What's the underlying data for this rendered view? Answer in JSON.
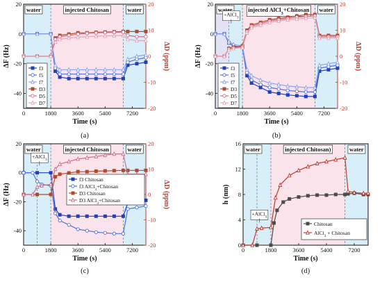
{
  "colors": {
    "f3": "#1f3fbf",
    "f5": "#4d6fe0",
    "f7": "#8ea2f0",
    "D3": "#b5492a",
    "D5": "#d46a8a",
    "D7": "#e3a6b8",
    "chitosan_h": "#4a4a4a",
    "alcl3_h": "#c0392b",
    "water_bg": "#d8eef8",
    "chitosan_bg": "#fbe3ec",
    "alcl3_bg": "#e3e3f5",
    "right_axis": "#c0392b"
  },
  "chart_data": [
    {
      "id": "a",
      "type": "line",
      "caption": "(a)",
      "xlabel": "Time (s)",
      "ylabel_left": "ΔF (Hz)",
      "ylabel_right": "ΔD (ppm)",
      "xlim": [
        0,
        8100
      ],
      "ylim_left": [
        -50,
        20
      ],
      "ylim_right": [
        -20,
        20
      ],
      "xticks": [
        0,
        1800,
        3600,
        5400,
        7200
      ],
      "yticks_left": [
        -40,
        -20,
        0,
        20
      ],
      "yticks_right": [
        -20,
        -10,
        0,
        10,
        20
      ],
      "regions": [
        {
          "label": "water",
          "x0": 0,
          "x1": 1800,
          "kind": "water"
        },
        {
          "label": "injected Chitosan",
          "x0": 1800,
          "x1": 6600,
          "kind": "chitosan"
        },
        {
          "label": "water",
          "x0": 6600,
          "x1": 8100,
          "kind": "water"
        }
      ],
      "legend": [
        "f3",
        "f5",
        "f7",
        "D3",
        "D5",
        "D7"
      ],
      "series": [
        {
          "name": "f3",
          "axis": "left",
          "key": "f3",
          "marker": "square",
          "x": [
            0,
            900,
            1800,
            2100,
            2400,
            3000,
            3600,
            4200,
            4800,
            5400,
            6000,
            6600,
            6900,
            7500,
            8100
          ],
          "y": [
            0,
            0,
            0,
            -25,
            -29,
            -30,
            -30,
            -30,
            -30,
            -30,
            -30,
            -30,
            -21,
            -20,
            -19
          ]
        },
        {
          "name": "f5",
          "axis": "left",
          "key": "f5",
          "marker": "circle",
          "x": [
            0,
            900,
            1800,
            2100,
            2400,
            3000,
            3600,
            4200,
            4800,
            5400,
            6000,
            6600,
            6900,
            7500,
            8100
          ],
          "y": [
            0,
            0,
            0,
            -23,
            -27,
            -27,
            -27,
            -27,
            -27,
            -27,
            -27,
            -27,
            -19,
            -17,
            -16
          ]
        },
        {
          "name": "f7",
          "axis": "left",
          "key": "f7",
          "marker": "triangle",
          "x": [
            0,
            900,
            1800,
            2100,
            2400,
            3000,
            3600,
            4200,
            4800,
            5400,
            6000,
            6600,
            6900,
            7500,
            8100
          ],
          "y": [
            0,
            0,
            0,
            -21,
            -24,
            -24,
            -24,
            -24,
            -24,
            -24,
            -24,
            -24,
            -17,
            -15,
            -14
          ]
        },
        {
          "name": "D3",
          "axis": "right",
          "key": "D3",
          "marker": "square",
          "x": [
            0,
            900,
            1800,
            2100,
            2400,
            3000,
            3600,
            4200,
            4800,
            5400,
            6000,
            6600,
            6900,
            7500,
            8100
          ],
          "y": [
            0,
            0,
            0,
            7,
            8,
            8.5,
            9,
            9,
            9.2,
            9.3,
            9.4,
            9.5,
            9.5,
            9.5,
            9.5
          ]
        },
        {
          "name": "D5",
          "axis": "right",
          "key": "D5",
          "marker": "circle",
          "x": [
            0,
            900,
            1800,
            2100,
            2400,
            3000,
            3600,
            4200,
            4800,
            5400,
            6000,
            6600,
            6900,
            7500,
            8100
          ],
          "y": [
            0,
            0,
            0,
            6.5,
            7.5,
            8,
            8.5,
            8.8,
            9,
            9.1,
            9.2,
            9.3,
            8,
            7.5,
            7.5
          ]
        },
        {
          "name": "D7",
          "axis": "right",
          "key": "D7",
          "marker": "triangle",
          "x": [
            0,
            900,
            1800,
            2100,
            2400,
            3000,
            3600,
            4200,
            4800,
            5400,
            6000,
            6600,
            6900,
            7500,
            8100
          ],
          "y": [
            0,
            0,
            0,
            5.5,
            6.5,
            7,
            7.3,
            7.5,
            7.7,
            7.8,
            7.9,
            8,
            6.5,
            6,
            6
          ]
        }
      ]
    },
    {
      "id": "b",
      "type": "line",
      "caption": "(b)",
      "xlabel": "Time (s)",
      "ylabel_left": "ΔF (Hz)",
      "ylabel_right": "ΔD (ppm)",
      "xlim": [
        0,
        8100
      ],
      "ylim_left": [
        -50,
        20
      ],
      "ylim_right": [
        -20,
        20
      ],
      "xticks": [
        0,
        1800,
        3600,
        5400,
        7200
      ],
      "yticks_left": [
        -40,
        -20,
        0,
        20
      ],
      "yticks_right": [
        -20,
        -10,
        0,
        10,
        20
      ],
      "regions": [
        {
          "label": "water",
          "x0": 0,
          "x1": 900,
          "kind": "alcl3"
        },
        {
          "label": "",
          "x0": 900,
          "x1": 1800,
          "kind": "water"
        },
        {
          "label": "injected AlCl3+Chitosan",
          "x0": 1800,
          "x1": 6600,
          "kind": "chitosan"
        },
        {
          "label": "water",
          "x0": 6600,
          "x1": 8100,
          "kind": "water"
        }
      ],
      "annotation": "+AlCl3",
      "legend": [
        "f3",
        "f5",
        "f7",
        "D3",
        "D5",
        "D7"
      ],
      "series": [
        {
          "name": "f3",
          "axis": "left",
          "key": "f3",
          "marker": "square",
          "x": [
            0,
            600,
            900,
            1200,
            1800,
            2100,
            2400,
            3000,
            3600,
            4200,
            4800,
            5400,
            6000,
            6600,
            6900,
            7500,
            8100
          ],
          "y": [
            0,
            0,
            -6,
            -8,
            -9,
            -28,
            -33,
            -36,
            -39,
            -40,
            -41,
            -41.5,
            -42,
            -42,
            -25,
            -24,
            -23
          ]
        },
        {
          "name": "f5",
          "axis": "left",
          "key": "f5",
          "marker": "circle",
          "x": [
            0,
            600,
            900,
            1200,
            1800,
            2100,
            2400,
            3000,
            3600,
            4200,
            4800,
            5400,
            6000,
            6600,
            6900,
            7500,
            8100
          ],
          "y": [
            0,
            0,
            -6,
            -8,
            -9,
            -26,
            -31,
            -34,
            -36,
            -37,
            -38,
            -38.5,
            -39,
            -39,
            -23,
            -22,
            -21
          ]
        },
        {
          "name": "f7",
          "axis": "left",
          "key": "f7",
          "marker": "triangle",
          "x": [
            0,
            600,
            900,
            1200,
            1800,
            2100,
            2400,
            3000,
            3600,
            4200,
            4800,
            5400,
            6000,
            6600,
            6900,
            7500,
            8100
          ],
          "y": [
            0,
            0,
            -5,
            -7,
            -8,
            -24,
            -28,
            -31,
            -33,
            -34,
            -35,
            -35.5,
            -36,
            -36,
            -21,
            -20,
            -19
          ]
        },
        {
          "name": "D3",
          "axis": "right",
          "key": "D3",
          "marker": "square",
          "x": [
            0,
            600,
            900,
            1200,
            1800,
            2100,
            2400,
            3000,
            3600,
            4200,
            4800,
            5400,
            6000,
            6600,
            6900,
            7500,
            8100
          ],
          "y": [
            0,
            0,
            3,
            3.5,
            4,
            10,
            12,
            13,
            14,
            14.5,
            15,
            15.5,
            16,
            16,
            8,
            8,
            8
          ]
        },
        {
          "name": "D5",
          "axis": "right",
          "key": "D5",
          "marker": "circle",
          "x": [
            0,
            600,
            900,
            1200,
            1800,
            2100,
            2400,
            3000,
            3600,
            4200,
            4800,
            5400,
            6000,
            6600,
            6900,
            7500,
            8100
          ],
          "y": [
            0,
            0,
            2.8,
            3.2,
            3.6,
            9.5,
            11.5,
            12.5,
            13.5,
            14,
            14.5,
            15,
            15.3,
            15.5,
            7.5,
            7.5,
            7.5
          ]
        },
        {
          "name": "D7",
          "axis": "right",
          "key": "D7",
          "marker": "triangle",
          "x": [
            0,
            600,
            900,
            1200,
            1800,
            2100,
            2400,
            3000,
            3600,
            4200,
            4800,
            5400,
            6000,
            6600,
            6900,
            7500,
            8100
          ],
          "y": [
            0,
            0,
            2.5,
            3,
            3.3,
            9,
            11,
            12,
            13,
            13.5,
            14,
            14.3,
            14.6,
            14.8,
            7,
            7,
            7
          ]
        }
      ]
    },
    {
      "id": "c",
      "type": "line",
      "caption": "(c)",
      "xlabel": "Time (s)",
      "ylabel_left": "ΔF (Hz)",
      "ylabel_right": "ΔD (ppm)",
      "xlim": [
        0,
        8100
      ],
      "ylim_left": [
        -50,
        20
      ],
      "ylim_right": [
        -20,
        20
      ],
      "xticks": [
        0,
        1800,
        3600,
        5400,
        7200
      ],
      "yticks_left": [
        -40,
        -20,
        0,
        20
      ],
      "yticks_right": [
        -20,
        -10,
        0,
        10,
        20
      ],
      "regions": [
        {
          "label": "water",
          "x0": 0,
          "x1": 900,
          "kind": "water"
        },
        {
          "label": "",
          "x0": 900,
          "x1": 1800,
          "kind": "water"
        },
        {
          "label": "injected Chitosan",
          "x0": 1800,
          "x1": 6600,
          "kind": "chitosan"
        },
        {
          "label": "water",
          "x0": 6600,
          "x1": 8100,
          "kind": "water"
        }
      ],
      "annotation": "+AlCl3",
      "legend": [
        "f3  Chitosan",
        "f3  AlCl3+Chitosan",
        "D3  Chitosan",
        "D3  AlCl3+Chitosan"
      ],
      "series": [
        {
          "name": "f3  Chitosan",
          "axis": "left",
          "key": "f3",
          "marker": "square",
          "x": [
            0,
            900,
            1800,
            2100,
            2400,
            3000,
            3600,
            4200,
            4800,
            5400,
            6000,
            6600,
            6900,
            7500,
            8100
          ],
          "y": [
            0,
            0,
            0,
            -25,
            -29,
            -30,
            -30,
            -30,
            -30,
            -30,
            -30,
            -30,
            -21,
            -20,
            -19
          ]
        },
        {
          "name": "f3  AlCl3+Chitosan",
          "axis": "left",
          "key": "f5",
          "marker": "circle",
          "x": [
            0,
            600,
            900,
            1200,
            1800,
            2100,
            2400,
            3000,
            3600,
            4200,
            4800,
            5400,
            6000,
            6600,
            6900,
            7500,
            8100
          ],
          "y": [
            0,
            0,
            -6,
            -8,
            -9,
            -28,
            -33,
            -36,
            -39,
            -40,
            -41,
            -41.5,
            -42,
            -42,
            -25,
            -24,
            -23
          ]
        },
        {
          "name": "D3  Chitosan",
          "axis": "right",
          "key": "D3",
          "marker": "square",
          "x": [
            0,
            900,
            1800,
            2100,
            2400,
            3000,
            3600,
            4200,
            4800,
            5400,
            6000,
            6600,
            6900,
            7500,
            8100
          ],
          "y": [
            0,
            0,
            0,
            7,
            8,
            8.5,
            9,
            9,
            9.2,
            9.3,
            9.4,
            9.5,
            9.5,
            9.5,
            9.5
          ]
        },
        {
          "name": "D3  AlCl3+Chitosan",
          "axis": "right",
          "key": "D5",
          "marker": "triangle",
          "x": [
            0,
            600,
            900,
            1200,
            1800,
            2100,
            2400,
            3000,
            3600,
            4200,
            4800,
            5400,
            6000,
            6600,
            6900,
            7500,
            8100
          ],
          "y": [
            0,
            0,
            3,
            3.5,
            4,
            10,
            12,
            13,
            14,
            14.5,
            15,
            15.5,
            16,
            16,
            8,
            8,
            8
          ]
        }
      ]
    },
    {
      "id": "d",
      "type": "line",
      "caption": "(d)",
      "xlabel": "Time (s)",
      "ylabel_left": "h (nm)",
      "xlim": [
        0,
        8100
      ],
      "ylim_left": [
        0,
        16
      ],
      "xticks": [
        0,
        1800,
        3600,
        5400,
        7200
      ],
      "yticks_left": [
        0,
        4,
        8,
        12,
        16
      ],
      "regions": [
        {
          "label": "water",
          "x0": 0,
          "x1": 900,
          "kind": "water"
        },
        {
          "label": "",
          "x0": 900,
          "x1": 1800,
          "kind": "water"
        },
        {
          "label": "injected Chitosan)",
          "x0": 1800,
          "x1": 6600,
          "kind": "chitosan"
        },
        {
          "label": "water",
          "x0": 6600,
          "x1": 8100,
          "kind": "water"
        }
      ],
      "annotation": "+AlCl3",
      "legend": [
        "Chitosan",
        "AlCl3 + Chitosan"
      ],
      "series": [
        {
          "name": "Chitosan",
          "axis": "left",
          "key": "chitosan_h",
          "marker": "square",
          "x": [
            0,
            900,
            1800,
            2000,
            2200,
            2600,
            3000,
            3600,
            4200,
            4800,
            5400,
            6000,
            6600,
            6800,
            7200,
            7800,
            8100
          ],
          "y": [
            0,
            0,
            0,
            3.5,
            5.5,
            6.8,
            7.3,
            7.6,
            7.8,
            7.9,
            7.9,
            8,
            8,
            8.1,
            8.2,
            8,
            8
          ]
        },
        {
          "name": "AlCl3 + Chitosan",
          "axis": "left",
          "key": "alcl3_h",
          "marker": "triangle",
          "x": [
            0,
            600,
            900,
            1200,
            1800,
            2100,
            2400,
            3000,
            3600,
            4200,
            4800,
            5400,
            6000,
            6600,
            6800,
            7200,
            7800,
            8100
          ],
          "y": [
            0,
            0,
            2.6,
            2.7,
            2.8,
            7.5,
            9.5,
            11,
            11.8,
            12.4,
            12.9,
            13.2,
            13.5,
            13.8,
            8.5,
            8.3,
            8.2,
            8.2
          ]
        }
      ]
    }
  ]
}
